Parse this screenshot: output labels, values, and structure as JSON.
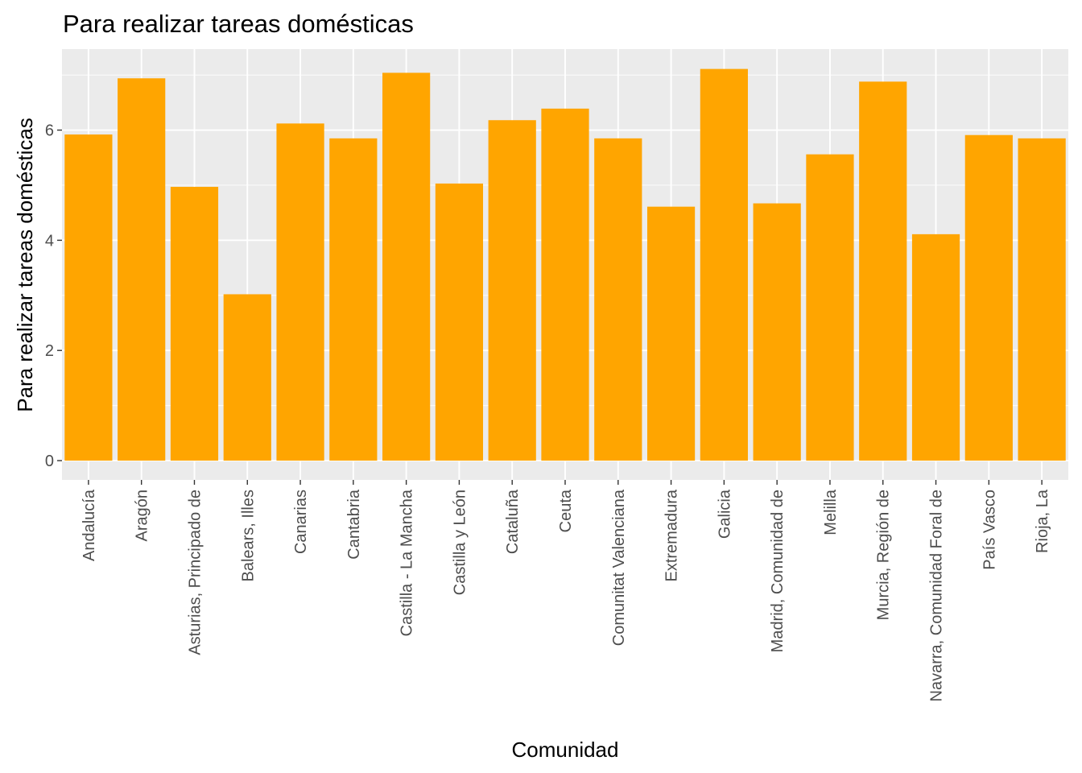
{
  "chart_data": {
    "type": "bar",
    "title": "Para realizar tareas domésticas",
    "xlabel": "Comunidad",
    "ylabel": "Para realizar tareas domésticas",
    "categories": [
      "Andalucía",
      "Aragón",
      "Asturias, Principado de",
      "Balears, Illes",
      "Canarias",
      "Cantabria",
      "Castilla - La Mancha",
      "Castilla y León",
      "Cataluña",
      "Ceuta",
      "Comunitat Valenciana",
      "Extremadura",
      "Galicia",
      "Madrid, Comunidad de",
      "Melilla",
      "Murcia, Región de",
      "Navarra, Comunidad Foral de",
      "País Vasco",
      "Rioja, La"
    ],
    "values": [
      5.92,
      6.94,
      4.97,
      3.02,
      6.12,
      5.85,
      7.04,
      5.03,
      6.18,
      6.39,
      5.85,
      4.61,
      7.11,
      4.67,
      5.56,
      6.88,
      4.11,
      5.91,
      5.85
    ],
    "ylim": [
      -0.35,
      7.47
    ],
    "yticks": [
      0,
      2,
      4,
      6
    ],
    "grid": true,
    "bar_color": "#FFA500",
    "panel_color": "#EBEBEB"
  }
}
